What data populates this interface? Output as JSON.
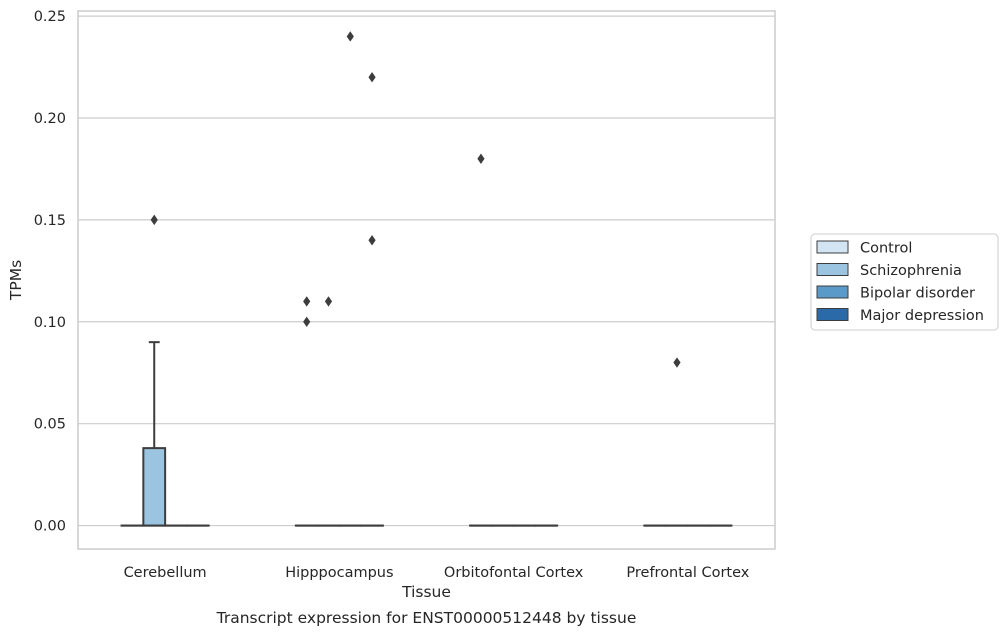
{
  "chart_data": {
    "type": "box",
    "title": "",
    "caption": "Transcript expression for ENST00000512448 by tissue",
    "xlabel": "Tissue",
    "ylabel": "TPMs",
    "ylim": [
      -0.0115,
      0.2525
    ],
    "yticks": [
      "0.00",
      "0.05",
      "0.10",
      "0.15",
      "0.20",
      "0.25"
    ],
    "ytick_values": [
      0,
      0.05,
      0.1,
      0.15,
      0.2,
      0.25
    ],
    "grid": "horizontal",
    "legend_position": "right",
    "categories": [
      "Cerebellum",
      "Hipppocampus",
      "Orbitofontal Cortex",
      "Prefrontal Cortex"
    ],
    "series": [
      {
        "name": "Control",
        "color": "#d3e4f3",
        "boxes": [
          {
            "q1": 0,
            "median": 0,
            "q3": 0,
            "whisker_low": 0,
            "whisker_high": 0,
            "outliers": []
          },
          {
            "q1": 0,
            "median": 0,
            "q3": 0,
            "whisker_low": 0,
            "whisker_high": 0,
            "outliers": [
              0.1,
              0.11
            ]
          },
          {
            "q1": 0,
            "median": 0,
            "q3": 0,
            "whisker_low": 0,
            "whisker_high": 0,
            "outliers": [
              0.18
            ]
          },
          {
            "q1": 0,
            "median": 0,
            "q3": 0,
            "whisker_low": 0,
            "whisker_high": 0,
            "outliers": []
          }
        ]
      },
      {
        "name": "Schizophrenia",
        "color": "#9ac4df",
        "boxes": [
          {
            "q1": 0,
            "median": 0,
            "q3": 0.038,
            "whisker_low": 0,
            "whisker_high": 0.09,
            "outliers": [
              0.15
            ]
          },
          {
            "q1": 0,
            "median": 0,
            "q3": 0,
            "whisker_low": 0,
            "whisker_high": 0,
            "outliers": [
              0.11
            ]
          },
          {
            "q1": 0,
            "median": 0,
            "q3": 0,
            "whisker_low": 0,
            "whisker_high": 0,
            "outliers": []
          },
          {
            "q1": 0,
            "median": 0,
            "q3": 0,
            "whisker_low": 0,
            "whisker_high": 0,
            "outliers": [
              0.08
            ]
          }
        ]
      },
      {
        "name": "Bipolar disorder",
        "color": "#5a9ac8",
        "boxes": [
          {
            "q1": 0,
            "median": 0,
            "q3": 0,
            "whisker_low": 0,
            "whisker_high": 0,
            "outliers": []
          },
          {
            "q1": 0,
            "median": 0,
            "q3": 0,
            "whisker_low": 0,
            "whisker_high": 0,
            "outliers": [
              0.24
            ]
          },
          {
            "q1": 0,
            "median": 0,
            "q3": 0,
            "whisker_low": 0,
            "whisker_high": 0,
            "outliers": []
          },
          {
            "q1": 0,
            "median": 0,
            "q3": 0,
            "whisker_low": 0,
            "whisker_high": 0,
            "outliers": []
          }
        ]
      },
      {
        "name": "Major depression",
        "color": "#2a6aa8",
        "boxes": [
          {
            "q1": 0,
            "median": 0,
            "q3": 0,
            "whisker_low": 0,
            "whisker_high": 0,
            "outliers": []
          },
          {
            "q1": 0,
            "median": 0,
            "q3": 0,
            "whisker_low": 0,
            "whisker_high": 0,
            "outliers": [
              0.22,
              0.14
            ]
          },
          {
            "q1": 0,
            "median": 0,
            "q3": 0,
            "whisker_low": 0,
            "whisker_high": 0,
            "outliers": []
          },
          {
            "q1": 0,
            "median": 0,
            "q3": 0,
            "whisker_low": 0,
            "whisker_high": 0,
            "outliers": []
          }
        ]
      }
    ]
  }
}
